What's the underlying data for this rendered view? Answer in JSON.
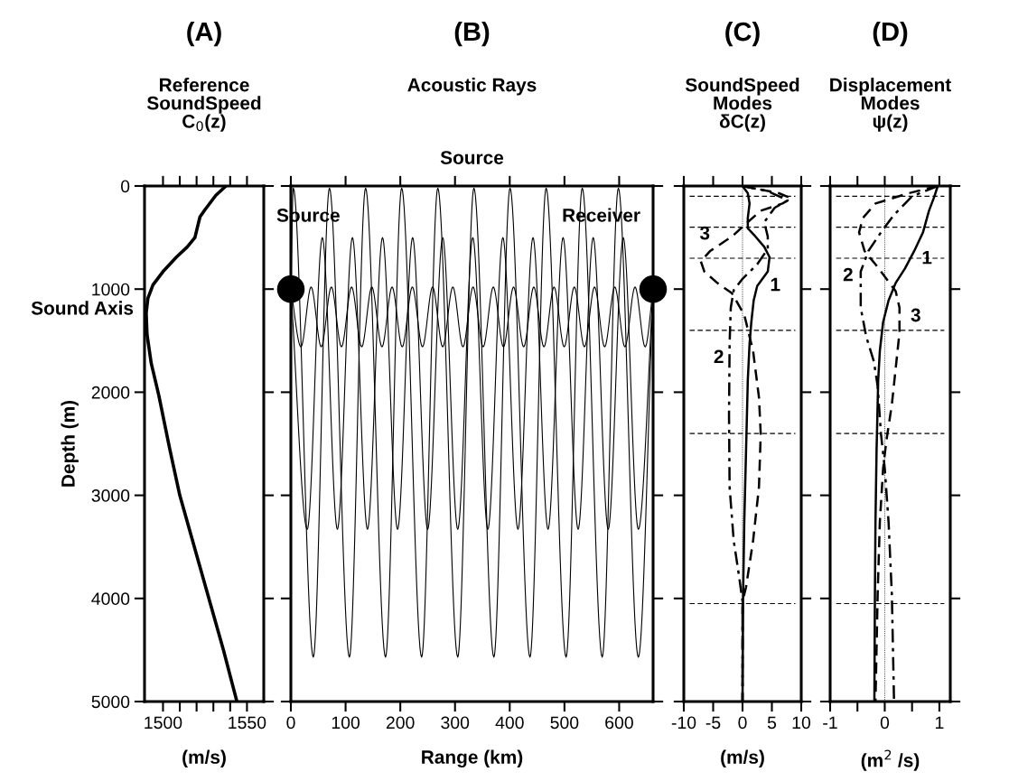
{
  "chart_data": [
    {
      "type": "line",
      "title": "(A)",
      "subtitle": "Reference\nSoundSpeed\nC$_{0}$(z)",
      "xlabel": "(m/s)",
      "ylabel": "Depth (m)",
      "xlim": [
        1489,
        1560
      ],
      "xticks": [
        1500,
        {
          "value": 1510,
          "label": null
        },
        {
          "value": 1520,
          "label": null
        },
        {
          "value": 1530,
          "label": null
        },
        {
          "value": 1540,
          "label": null
        },
        1550
      ],
      "ylim": [
        5000,
        0
      ],
      "yticks": [
        0,
        1000,
        2000,
        3000,
        4000,
        5000
      ],
      "annotations": [
        {
          "text": "Sound Axis",
          "x": 1489,
          "y": 1200
        }
      ],
      "series": [
        {
          "color": "#000000",
          "x": [
            1537.5,
            1531.5,
            1525,
            1522,
            1520.5,
            1519,
            1514.5,
            1508,
            1500.5,
            1494,
            1491,
            1490,
            1490.5,
            1493,
            1497.5,
            1504,
            1510,
            1519,
            1527.5,
            1536,
            1544
          ],
          "values": [
            0,
            90,
            230,
            300,
            400,
            500,
            590,
            690,
            820,
            960,
            1090,
            1230,
            1440,
            1720,
            2030,
            2550,
            3000,
            3520,
            4010,
            4500,
            5000
          ]
        }
      ]
    },
    {
      "type": "line",
      "title": "(B)",
      "subtitle": "Acoustic Rays",
      "x2label": "Source",
      "xlabel": "Range (km)",
      "xlim": [
        0,
        662
      ],
      "xticks": [
        0,
        100,
        200,
        300,
        400,
        500,
        600
      ],
      "ylim": [
        5000,
        0
      ],
      "yticks": [
        0,
        1000,
        2000,
        3000,
        4000,
        5000
      ],
      "tick_labels": "x",
      "series": [
        {
          "color": "#000000",
          "x": [
            0,
            4.5,
            41,
            70.5,
            107,
            136.5,
            173,
            202.5,
            239,
            268.5,
            305,
            334.5,
            371,
            400.5,
            437,
            466.5,
            503,
            532.5,
            569,
            598.5,
            635,
            662
          ],
          "values": [
            1000,
            20,
            4570,
            20,
            4570,
            20,
            4570,
            20,
            4570,
            20,
            4570,
            20,
            4570,
            20,
            4570,
            20,
            4570,
            20,
            4570,
            20,
            4570,
            1000
          ]
        },
        {
          "color": "#000000",
          "x": [
            0,
            30,
            57.5,
            85,
            112.5,
            140,
            167.5,
            195,
            222.5,
            250,
            277.5,
            305,
            332.5,
            360,
            387.5,
            415,
            442.5,
            470,
            497.5,
            525,
            552.5,
            580,
            607.5,
            635,
            662
          ],
          "values": [
            1000,
            3330,
            500,
            3330,
            500,
            3330,
            500,
            3330,
            500,
            3330,
            500,
            3330,
            500,
            3330,
            500,
            3330,
            500,
            3330,
            500,
            3330,
            500,
            3330,
            500,
            3330,
            1000
          ]
        },
        {
          "color": "#000000",
          "x": [
            0,
            18.5,
            37,
            55.5,
            74,
            92.5,
            111,
            129.5,
            148,
            166.5,
            185,
            203.5,
            222,
            240.5,
            259,
            277.5,
            296,
            314.5,
            333,
            351.5,
            370,
            388.5,
            407,
            425.5,
            444,
            462.5,
            481,
            499.5,
            518,
            536.5,
            555,
            573.5,
            592,
            610.5,
            629,
            647.5,
            662
          ],
          "values": [
            1000,
            1560,
            980,
            1560,
            980,
            1560,
            980,
            1560,
            980,
            1560,
            980,
            1560,
            980,
            1560,
            980,
            1560,
            980,
            1560,
            980,
            1560,
            980,
            1560,
            980,
            1560,
            980,
            1560,
            980,
            1560,
            980,
            1560,
            980,
            1560,
            980,
            1560,
            980,
            1560,
            1000
          ]
        },
        {
          "type": "scatter",
          "name": "Source",
          "color": "#000000",
          "marker": "circle",
          "x": [
            0
          ],
          "values": [
            1000
          ]
        },
        {
          "type": "scatter",
          "name": "Receiver",
          "color": "#000000",
          "marker": "circle",
          "x": [
            662
          ],
          "values": [
            1000
          ]
        }
      ]
    },
    {
      "type": "line",
      "title": "(C)",
      "subtitle": "SoundSpeed\nModes\nδC(z)",
      "xlabel": "(m/s)",
      "xlim": [
        -10,
        10
      ],
      "xticks": [
        -10,
        -5,
        0,
        5,
        10
      ],
      "ylim": [
        5000,
        0
      ],
      "yticks": [
        0,
        1000,
        2000,
        3000,
        4000,
        5000
      ],
      "tick_labels": "x",
      "ref_lines": [
        {
          "axis": "x",
          "value": 0,
          "line_style": "dotted",
          "color": "#000000"
        },
        {
          "axis": "y",
          "value": 100,
          "line_style": "dashed",
          "color": "#000000"
        },
        {
          "axis": "y",
          "value": 400,
          "line_style": "dashed",
          "color": "#000000"
        },
        {
          "axis": "y",
          "value": 700,
          "line_style": "dashed",
          "color": "#000000"
        },
        {
          "axis": "y",
          "value": 1400,
          "line_style": "dashed",
          "color": "#000000"
        },
        {
          "axis": "y",
          "value": 2400,
          "line_style": "dashed",
          "color": "#000000"
        },
        {
          "axis": "y",
          "value": 4050,
          "line_style": "dashed",
          "color": "#000000"
        }
      ],
      "series": [
        {
          "name": "1",
          "color": "#000000",
          "line_style": "solid",
          "x": [
            0,
            0.9,
            1.2,
            0.9,
            0.9,
            2.2,
            3.7,
            4.6,
            4.3,
            2.5,
            1.9,
            1.5,
            1.2,
            0.9,
            0.6,
            0.3,
            0.1,
            0
          ],
          "values": [
            0,
            70,
            170,
            310,
            410,
            490,
            590,
            690,
            830,
            970,
            1110,
            1320,
            1530,
            1880,
            2570,
            3260,
            3960,
            5000
          ]
        },
        {
          "name": "2",
          "color": "#000000",
          "line_style": "dashdot",
          "x": [
            0,
            4.3,
            7.7,
            5.5,
            3.7,
            4.3,
            4.3,
            2.5,
            0,
            -1.5,
            -2.0,
            -2.2,
            -2.3,
            -2.2,
            -1.5,
            -0.6,
            0,
            0
          ],
          "values": [
            0,
            50,
            140,
            210,
            350,
            490,
            610,
            760,
            900,
            1010,
            1180,
            1530,
            2220,
            2920,
            3440,
            3780,
            4030,
            5000
          ]
        },
        {
          "name": "3",
          "color": "#000000",
          "line_style": "dashed",
          "x": [
            0,
            6.2,
            8.3,
            6.8,
            3.1,
            0.9,
            -1.8,
            -5.5,
            -7.1,
            -6.5,
            -4.3,
            -1.8,
            0.3,
            1.8,
            2.8,
            3.1,
            2.8,
            1.8,
            0.6,
            0,
            0
          ],
          "values": [
            0,
            70,
            120,
            170,
            240,
            350,
            490,
            630,
            730,
            830,
            940,
            1040,
            1250,
            1600,
            2050,
            2400,
            2920,
            3440,
            3890,
            4030,
            5000
          ]
        }
      ]
    },
    {
      "type": "line",
      "title": "(D)",
      "subtitle": "Displacement\nModes\nψ(z)",
      "xlabel": "(m$^{2}$ /s)",
      "xlim": [
        -1,
        1.2
      ],
      "xticks": [
        -1,
        {
          "value": -0.5,
          "label": null
        },
        0,
        {
          "value": 0.5,
          "label": null
        },
        1
      ],
      "ylim": [
        5000,
        0
      ],
      "yticks": [
        0,
        1000,
        2000,
        3000,
        4000,
        5000
      ],
      "tick_labels": "x",
      "ref_lines": [
        {
          "axis": "x",
          "value": 0,
          "line_style": "dotted",
          "color": "#000000"
        },
        {
          "axis": "y",
          "value": 100,
          "line_style": "dashed",
          "color": "#000000"
        },
        {
          "axis": "y",
          "value": 400,
          "line_style": "dashed",
          "color": "#000000"
        },
        {
          "axis": "y",
          "value": 700,
          "line_style": "dashed",
          "color": "#000000"
        },
        {
          "axis": "y",
          "value": 1400,
          "line_style": "dashed",
          "color": "#000000"
        },
        {
          "axis": "y",
          "value": 2400,
          "line_style": "dashed",
          "color": "#000000"
        },
        {
          "axis": "y",
          "value": 4050,
          "line_style": "dashed",
          "color": "#000000"
        }
      ],
      "series": [
        {
          "name": "1",
          "color": "#000000",
          "line_style": "solid",
          "x": [
            0.97,
            0.91,
            0.81,
            0.7,
            0.54,
            0.37,
            0.2,
            0.07,
            -0.03,
            -0.09,
            -0.12,
            -0.15,
            -0.17,
            -0.18,
            -0.19
          ],
          "values": [
            0,
            100,
            240,
            450,
            630,
            800,
            940,
            1110,
            1320,
            1600,
            1880,
            2570,
            3260,
            3960,
            5000
          ]
        },
        {
          "name": "2",
          "color": "#000000",
          "line_style": "dashdot",
          "x": [
            0.97,
            0.5,
            0.17,
            -0.07,
            -0.3,
            -0.44,
            -0.44,
            -0.34,
            -0.2,
            -0.13,
            -0.07,
            0,
            0.07,
            0.13,
            0.17
          ],
          "values": [
            0,
            100,
            280,
            450,
            630,
            830,
            1180,
            1460,
            1700,
            1940,
            2400,
            2740,
            3260,
            3960,
            5000
          ]
        },
        {
          "name": "3",
          "color": "#000000",
          "line_style": "dashed",
          "x": [
            0.97,
            0.44,
            -0.17,
            -0.4,
            -0.47,
            -0.37,
            -0.17,
            0.03,
            0.2,
            0.27,
            0.27,
            0.2,
            0.13,
            0.03,
            -0.03,
            -0.09,
            -0.13,
            -0.17
          ],
          "values": [
            0,
            70,
            170,
            310,
            450,
            630,
            760,
            900,
            1020,
            1180,
            1420,
            1770,
            2120,
            2470,
            2740,
            3260,
            3960,
            5000
          ]
        }
      ]
    }
  ]
}
